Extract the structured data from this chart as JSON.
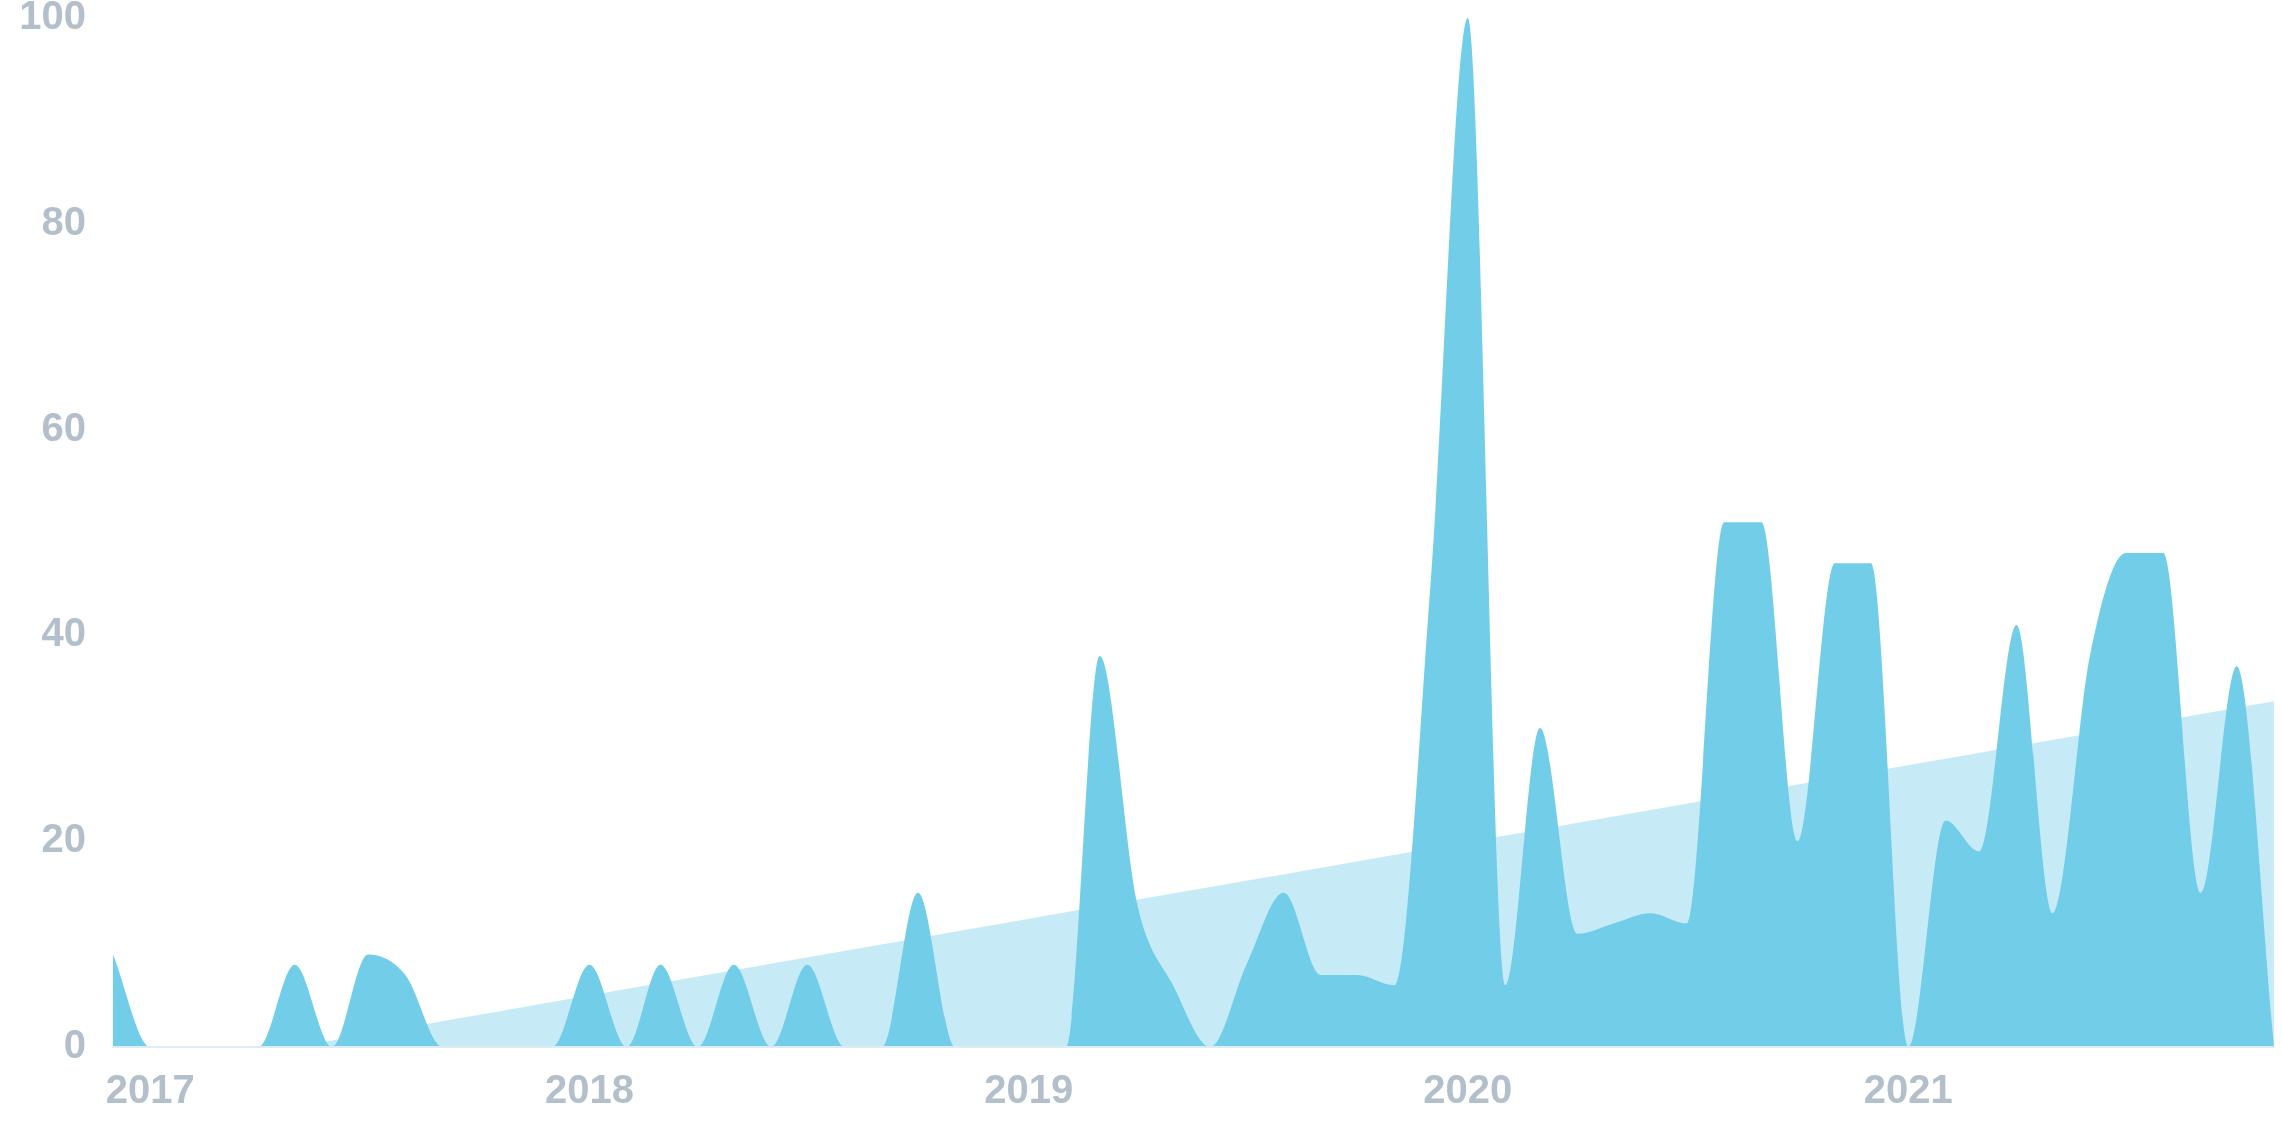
{
  "chart_data": {
    "type": "area",
    "x": [
      "2016-12",
      "2017-01",
      "2017-02",
      "2017-03",
      "2017-04",
      "2017-05",
      "2017-06",
      "2017-07",
      "2017-08",
      "2017-09",
      "2017-10",
      "2017-11",
      "2017-12",
      "2018-01",
      "2018-02",
      "2018-03",
      "2018-04",
      "2018-05",
      "2018-06",
      "2018-07",
      "2018-08",
      "2018-09",
      "2018-10",
      "2018-11",
      "2018-12",
      "2019-01",
      "2019-02",
      "2019-03",
      "2019-04",
      "2019-05",
      "2019-06",
      "2019-07",
      "2019-08",
      "2019-09",
      "2019-10",
      "2019-11",
      "2019-12",
      "2020-01",
      "2020-02",
      "2020-03",
      "2020-04",
      "2020-05",
      "2020-06",
      "2020-07",
      "2020-08",
      "2020-09",
      "2020-10",
      "2020-11",
      "2020-12",
      "2021-01",
      "2021-02",
      "2021-03",
      "2021-04",
      "2021-05",
      "2021-06",
      "2021-07",
      "2021-08",
      "2021-09",
      "2021-10",
      "2021-11"
    ],
    "series": [
      {
        "color": "#72cde9",
        "values": [
          9,
          0,
          0,
          0,
          0,
          8,
          0,
          9,
          7,
          0,
          0,
          0,
          0,
          8,
          0,
          8,
          0,
          8,
          0,
          8,
          0,
          0,
          15,
          0,
          0,
          0,
          0,
          38,
          14,
          6,
          0,
          8,
          15,
          7,
          7,
          6,
          45,
          100,
          6,
          31,
          11,
          12,
          13,
          12,
          51,
          51,
          20,
          47,
          47,
          0,
          22,
          19,
          41,
          13,
          38,
          48,
          48,
          15,
          37,
          0
        ]
      },
      {
        "type": "area",
        "color": "#c7eaf7",
        "x": [
          "2017-05",
          "2021-11"
        ],
        "values": [
          0,
          33.6
        ]
      }
    ],
    "xlim": [
      "2016-12",
      "2021-11"
    ],
    "xticks": [
      "2017",
      "2018",
      "2019",
      "2020",
      "2021"
    ],
    "ylim": [
      0,
      100
    ],
    "yticks": [
      0,
      20,
      40,
      60,
      80,
      100
    ]
  }
}
